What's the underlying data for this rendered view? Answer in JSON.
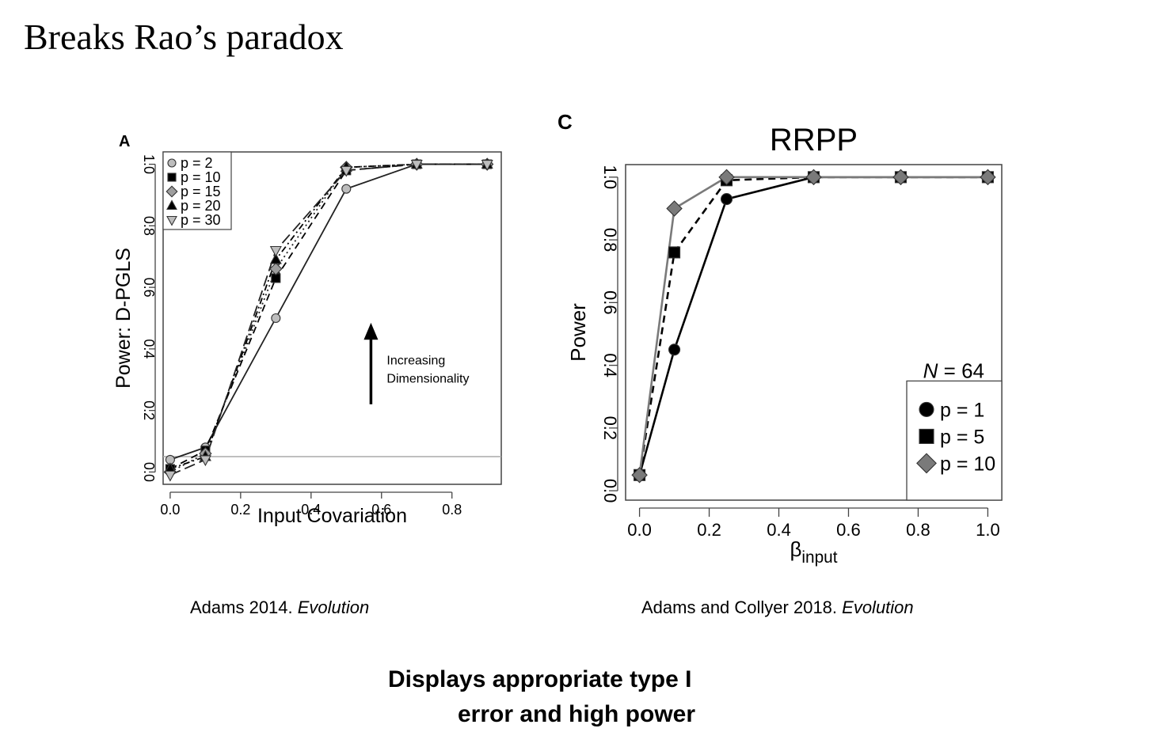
{
  "slide": {
    "title": "Breaks Rao’s paradox",
    "caption_a_text": "Adams 2014. ",
    "caption_a_journal": "Evolution",
    "caption_c_text": "Adams and Collyer 2018. ",
    "caption_c_journal": "Evolution",
    "bottom_line1": "Displays appropriate type I",
    "bottom_line2": "error and high power"
  },
  "chart_data": [
    {
      "type": "line",
      "panel_label": "A",
      "title": "",
      "xlabel": "Input Covariation",
      "ylabel": "Power: D-PGLS",
      "xlim": [
        -0.02,
        0.94
      ],
      "ylim": [
        -0.04,
        1.04
      ],
      "xticks": [
        0.0,
        0.2,
        0.4,
        0.6,
        0.8
      ],
      "xtick_labels": [
        "0.0",
        "0.2",
        "0.4",
        "0.6",
        "0.8"
      ],
      "yticks": [
        0.0,
        0.2,
        0.4,
        0.6,
        0.8,
        1.0
      ],
      "ytick_labels": [
        "0.0",
        "0.2",
        "0.4",
        "0.6",
        "0.8",
        "1.0"
      ],
      "reference_line": 0.05,
      "legend_position": "top-left",
      "x": [
        0.0,
        0.1,
        0.3,
        0.5,
        0.7,
        0.9
      ],
      "series": [
        {
          "name": "p = 2",
          "marker": "circle",
          "color": "#bdbdbd",
          "dash": "solid",
          "values": [
            0.04,
            0.08,
            0.5,
            0.92,
            1.0,
            1.0
          ]
        },
        {
          "name": "p = 10",
          "marker": "square",
          "color": "#000000",
          "dash": "dash",
          "values": [
            0.01,
            0.07,
            0.63,
            0.98,
            1.0,
            1.0
          ]
        },
        {
          "name": "p = 15",
          "marker": "diamond",
          "color": "#9e9e9e",
          "dash": "dot",
          "values": [
            0.0,
            0.06,
            0.66,
            0.99,
            1.0,
            1.0
          ]
        },
        {
          "name": "p = 20",
          "marker": "triangle-up",
          "color": "#000000",
          "dash": "dashdot",
          "values": [
            0.01,
            0.05,
            0.69,
            0.99,
            1.0,
            1.0
          ]
        },
        {
          "name": "p = 30",
          "marker": "triangle-down",
          "color": "#bdbdbd",
          "dash": "longdash",
          "values": [
            -0.01,
            0.04,
            0.72,
            0.98,
            1.0,
            1.0
          ]
        }
      ],
      "annotation": {
        "line1": "Increasing",
        "line2": "Dimensionality"
      }
    },
    {
      "type": "line",
      "panel_label": "C",
      "title": "RRPP",
      "xlabel": "β",
      "xlabel_sub": "input",
      "ylabel": "Power",
      "xlim": [
        -0.04,
        1.04
      ],
      "ylim": [
        -0.03,
        1.04
      ],
      "xticks": [
        0.0,
        0.2,
        0.4,
        0.6,
        0.8,
        1.0
      ],
      "xtick_labels": [
        "0.0",
        "0.2",
        "0.4",
        "0.6",
        "0.8",
        "1.0"
      ],
      "yticks": [
        0.0,
        0.2,
        0.4,
        0.6,
        0.8,
        1.0
      ],
      "ytick_labels": [
        "0.0",
        "0.2",
        "0.4",
        "0.6",
        "0.8",
        "1.0"
      ],
      "legend_position": "bottom-right",
      "sample_note_italic": "N",
      "sample_note_rest": " = 64",
      "x": [
        0.0,
        0.1,
        0.25,
        0.5,
        0.75,
        1.0
      ],
      "series": [
        {
          "name": "p = 1",
          "marker": "circle",
          "color": "#000000",
          "dash": "solid",
          "values": [
            0.05,
            0.45,
            0.93,
            1.0,
            1.0,
            1.0
          ]
        },
        {
          "name": "p = 5",
          "marker": "square",
          "color": "#000000",
          "dash": "dash",
          "values": [
            0.05,
            0.76,
            0.99,
            1.0,
            1.0,
            1.0
          ]
        },
        {
          "name": "p = 10",
          "marker": "diamond",
          "color": "#7a7a7a",
          "dash": "solid",
          "values": [
            0.05,
            0.9,
            1.0,
            1.0,
            1.0,
            1.0
          ]
        }
      ]
    }
  ]
}
